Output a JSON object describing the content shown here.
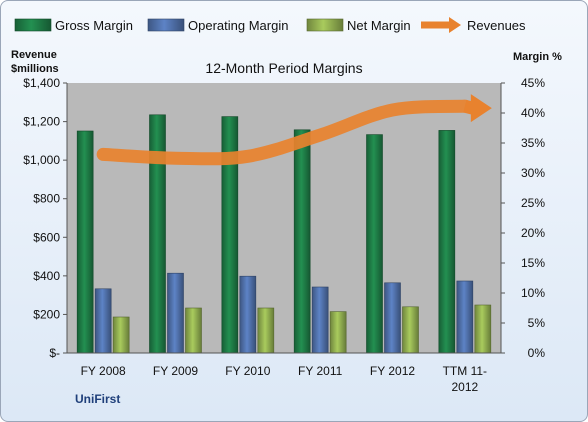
{
  "chart_data": {
    "type": "bar",
    "title": "12-Month Period Margins",
    "company": "UniFirst",
    "categories": [
      "FY 2008",
      "FY 2009",
      "FY 2010",
      "FY 2011",
      "FY 2012",
      "TTM 11-2012"
    ],
    "left_axis": {
      "label_line1": "Revenue",
      "label_line2": "$millions",
      "ylim": [
        0,
        1400
      ],
      "ticks": [
        "$-",
        "$200",
        "$400",
        "$600",
        "$800",
        "$1,000",
        "$1,200",
        "$1,400"
      ]
    },
    "right_axis": {
      "label": "Margin %",
      "ylim": [
        0,
        45
      ],
      "ticks": [
        "0%",
        "5%",
        "10%",
        "15%",
        "20%",
        "25%",
        "30%",
        "35%",
        "40%",
        "45%"
      ]
    },
    "series": [
      {
        "name": "Gross Margin",
        "type": "bar",
        "axis": "right",
        "color": "#1e7a45",
        "values": [
          37.0,
          39.7,
          39.4,
          37.2,
          36.4,
          37.1
        ]
      },
      {
        "name": "Operating Margin",
        "type": "bar",
        "axis": "right",
        "color": "#4f6fa8",
        "values": [
          10.7,
          13.3,
          12.8,
          11.0,
          11.7,
          12.0
        ]
      },
      {
        "name": "Net Margin",
        "type": "bar",
        "axis": "right",
        "color": "#8fac4f",
        "values": [
          6.0,
          7.5,
          7.5,
          6.9,
          7.7,
          8.0
        ]
      },
      {
        "name": "Revenues",
        "type": "line",
        "axis": "left",
        "color": "#e8822e",
        "values": [
          1030,
          1010,
          1020,
          1130,
          1260,
          1280
        ]
      }
    ],
    "grid": false,
    "legend": "top"
  }
}
